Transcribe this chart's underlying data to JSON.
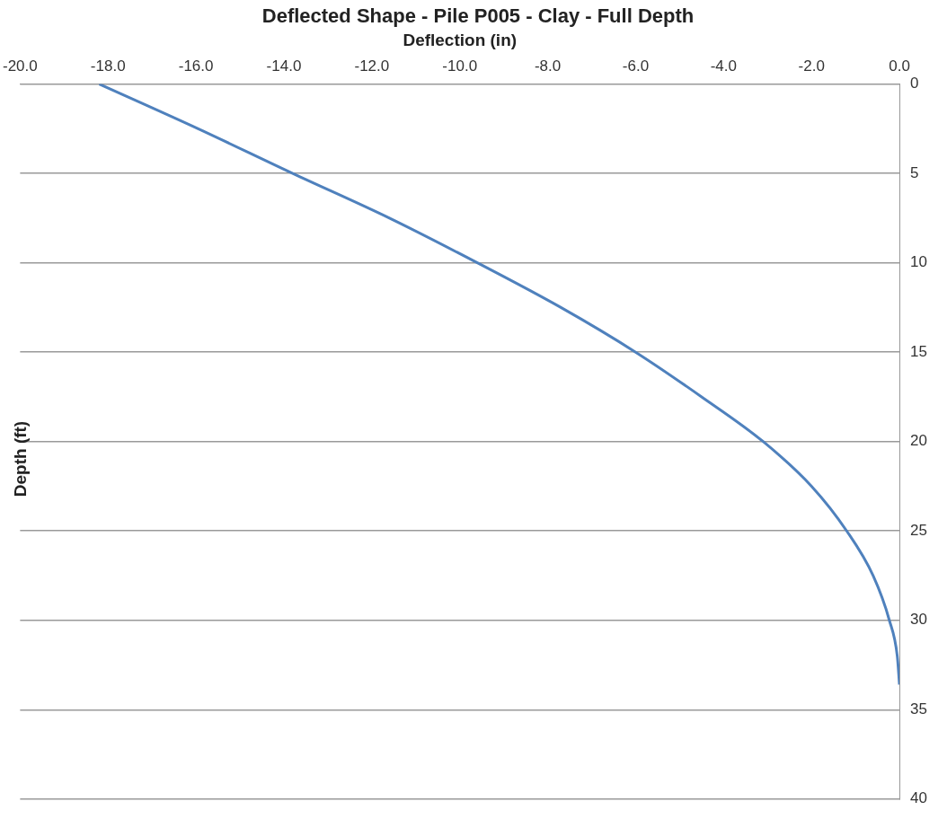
{
  "chart_data": {
    "type": "line",
    "title": "Deflected Shape - Pile P005 - Clay - Full Depth",
    "xlabel": "Deflection (in)",
    "ylabel": "Depth (ft)",
    "xlim": [
      -20,
      0
    ],
    "xticks": [
      {
        "value": -20,
        "label": "-20.0"
      },
      {
        "value": -18,
        "label": "-18.0"
      },
      {
        "value": -16,
        "label": "-16.0"
      },
      {
        "value": -14,
        "label": "-14.0"
      },
      {
        "value": -12,
        "label": "-12.0"
      },
      {
        "value": -10,
        "label": "-10.0"
      },
      {
        "value": -8,
        "label": "-8.0"
      },
      {
        "value": -6,
        "label": "-6.0"
      },
      {
        "value": -4,
        "label": "-4.0"
      },
      {
        "value": -2,
        "label": "-2.0"
      },
      {
        "value": 0,
        "label": "0.0"
      }
    ],
    "ylim": [
      40,
      0
    ],
    "yticks": [
      0,
      5,
      10,
      15,
      20,
      25,
      30,
      35,
      40
    ],
    "grid": "y",
    "legend": false,
    "marker": "none",
    "line_style": "solid",
    "series": [
      {
        "color": "#4f81bd",
        "x": [
          -18.2,
          -15.95,
          -13.8,
          -11.6,
          -9.6,
          -7.7,
          -6.0,
          -4.5,
          -3.1,
          -2.0,
          -1.2,
          -0.6,
          -0.23,
          -0.05,
          0
        ],
        "values": [
          0,
          2.5,
          5,
          7.5,
          10,
          12.5,
          15,
          17.5,
          20,
          22.5,
          25,
          27.5,
          30,
          32,
          33.6
        ]
      }
    ]
  }
}
